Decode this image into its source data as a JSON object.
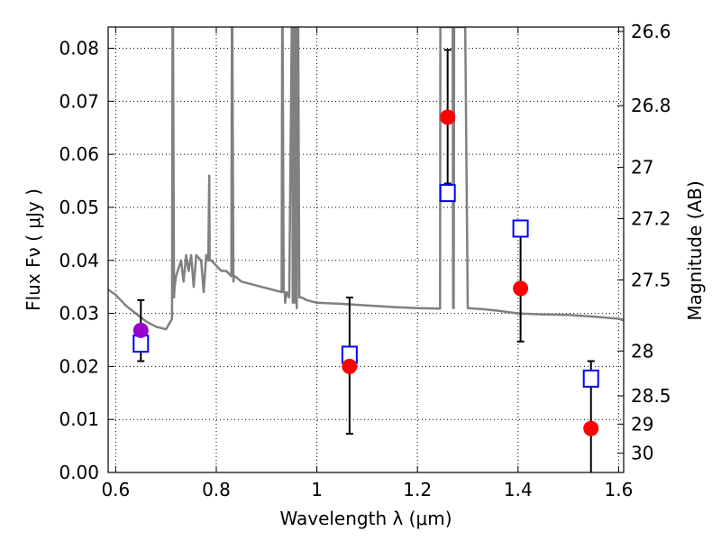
{
  "chart_data": {
    "type": "scatter",
    "xlabel": "Wavelength  λ (μm)",
    "ylabel": "Flux  Fν  ( μJy )",
    "ylabel_right": "Magnitude (AB)",
    "xlim": [
      0.585,
      1.61
    ],
    "ylim": [
      0.0,
      0.084
    ],
    "grid": true,
    "x_ticks": [
      {
        "value": 0.6,
        "label": "0.6"
      },
      {
        "value": 0.8,
        "label": "0.8"
      },
      {
        "value": 1.0,
        "label": "1"
      },
      {
        "value": 1.2,
        "label": "1.2"
      },
      {
        "value": 1.4,
        "label": "1.4"
      },
      {
        "value": 1.6,
        "label": "1.6"
      }
    ],
    "y_ticks": [
      {
        "value": 0.0,
        "label": "0.00"
      },
      {
        "value": 0.01,
        "label": "0.01"
      },
      {
        "value": 0.02,
        "label": "0.02"
      },
      {
        "value": 0.03,
        "label": "0.03"
      },
      {
        "value": 0.04,
        "label": "0.04"
      },
      {
        "value": 0.05,
        "label": "0.05"
      },
      {
        "value": 0.06,
        "label": "0.06"
      },
      {
        "value": 0.07,
        "label": "0.07"
      },
      {
        "value": 0.08,
        "label": "0.08"
      }
    ],
    "mag_ticks": [
      {
        "value": 26.6,
        "label": "26.6"
      },
      {
        "value": 26.8,
        "label": "26.8"
      },
      {
        "value": 27.0,
        "label": "27"
      },
      {
        "value": 27.2,
        "label": "27.2"
      },
      {
        "value": 27.5,
        "label": "27.5"
      },
      {
        "value": 28.0,
        "label": "28"
      },
      {
        "value": 28.5,
        "label": "28.5"
      },
      {
        "value": 29.0,
        "label": "29"
      },
      {
        "value": 30.0,
        "label": "30"
      }
    ],
    "colors": {
      "model": "#808080",
      "observed": "#ff0000",
      "observed_first": "#9900cc",
      "model_band": "#0000ff",
      "errorbar": "#000000"
    },
    "model_spectrum": {
      "x": [
        0.585,
        0.6,
        0.62,
        0.64,
        0.66,
        0.68,
        0.7,
        0.712,
        0.713,
        0.714,
        0.716,
        0.717,
        0.72,
        0.73,
        0.735,
        0.74,
        0.745,
        0.75,
        0.755,
        0.76,
        0.77,
        0.775,
        0.78,
        0.784,
        0.786,
        0.787,
        0.788,
        0.79,
        0.8,
        0.81,
        0.82,
        0.83,
        0.831,
        0.832,
        0.834,
        0.835,
        0.837,
        0.85,
        0.87,
        0.89,
        0.91,
        0.93,
        0.931,
        0.932,
        0.934,
        0.936,
        0.937,
        0.94,
        0.945,
        0.95,
        0.951,
        0.952,
        0.954,
        0.955,
        0.956,
        0.957,
        0.959,
        0.96,
        0.961,
        0.963,
        0.965,
        0.967,
        0.97,
        0.98,
        1.0,
        1.05,
        1.1,
        1.15,
        1.2,
        1.245,
        1.2455,
        1.249,
        1.25,
        1.254,
        1.255,
        1.26,
        1.265,
        1.27,
        1.271,
        1.272,
        1.273,
        1.275,
        1.277,
        1.279,
        1.28,
        1.283,
        1.29,
        1.295,
        1.3,
        1.3005,
        1.33,
        1.36,
        1.4,
        1.45,
        1.5,
        1.55,
        1.6,
        1.61
      ],
      "y": [
        0.0345,
        0.0335,
        0.0315,
        0.03,
        0.0285,
        0.0275,
        0.027,
        0.029,
        0.084,
        0.084,
        0.033,
        0.035,
        0.037,
        0.04,
        0.036,
        0.041,
        0.038,
        0.041,
        0.035,
        0.041,
        0.04,
        0.034,
        0.041,
        0.04,
        0.056,
        0.04,
        0.04,
        0.04,
        0.039,
        0.038,
        0.038,
        0.037,
        0.084,
        0.084,
        0.036,
        0.037,
        0.037,
        0.036,
        0.0355,
        0.035,
        0.0345,
        0.034,
        0.084,
        0.084,
        0.034,
        0.034,
        0.032,
        0.034,
        0.033,
        0.084,
        0.084,
        0.032,
        0.084,
        0.084,
        0.032,
        0.084,
        0.084,
        0.031,
        0.084,
        0.084,
        0.033,
        0.033,
        0.033,
        0.0325,
        0.032,
        0.0318,
        0.0315,
        0.0312,
        0.031,
        0.0309,
        0.084,
        0.084,
        0.084,
        0.084,
        0.084,
        0.084,
        0.084,
        0.084,
        0.031,
        0.031,
        0.084,
        0.084,
        0.084,
        0.084,
        0.084,
        0.084,
        0.084,
        0.084,
        0.031,
        0.031,
        0.0308,
        0.0305,
        0.03,
        0.0298,
        0.0297,
        0.0294,
        0.029,
        0.0287
      ]
    },
    "observed": [
      {
        "x": 0.65,
        "y": 0.0268,
        "yerr_lo": 0.021,
        "yerr_hi": 0.0325
      },
      {
        "x": 1.065,
        "y": 0.02,
        "yerr_lo": 0.0073,
        "yerr_hi": 0.033
      },
      {
        "x": 1.26,
        "y": 0.067,
        "yerr_lo": 0.0545,
        "yerr_hi": 0.0797
      },
      {
        "x": 1.405,
        "y": 0.0347,
        "yerr_lo": 0.0247,
        "yerr_hi": 0.0445
      },
      {
        "x": 1.545,
        "y": 0.0083,
        "yerr_lo": 0.0,
        "yerr_hi": 0.021
      }
    ],
    "model_band": [
      {
        "x": 0.65,
        "y": 0.0243
      },
      {
        "x": 1.065,
        "y": 0.0222
      },
      {
        "x": 1.26,
        "y": 0.0527
      },
      {
        "x": 1.405,
        "y": 0.046
      },
      {
        "x": 1.545,
        "y": 0.0177
      }
    ]
  }
}
